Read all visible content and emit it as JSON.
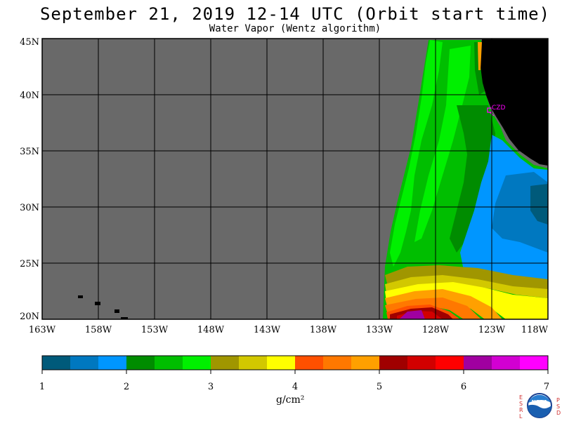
{
  "header": {
    "title": "September 21, 2019  12-14 UTC  (Orbit start time)",
    "subtitle": "Water Vapor (Wentz algorithm)"
  },
  "map": {
    "lat_labels": [
      "45N",
      "40N",
      "35N",
      "30N",
      "25N",
      "20N"
    ],
    "lon_labels": [
      "163W",
      "158W",
      "153W",
      "148W",
      "143W",
      "138W",
      "133W",
      "128W",
      "123W",
      "118W"
    ],
    "station_label": "CZD",
    "lat_range": [
      20,
      45
    ],
    "lon_range": [
      -163,
      -118
    ],
    "colors": {
      "no_data": "#696969",
      "land": "#000000",
      "station": "#ff00ff"
    }
  },
  "colorbar": {
    "tick_labels": [
      "1",
      "2",
      "3",
      "4",
      "5",
      "6",
      "7"
    ],
    "units": "g/cm²",
    "colors": [
      "#005a7a",
      "#0078c0",
      "#0096ff",
      "#008c00",
      "#00be00",
      "#00f000",
      "#a09600",
      "#d2c800",
      "#ffff00",
      "#ff5000",
      "#ff7800",
      "#ffa000",
      "#a00000",
      "#d20000",
      "#ff0000",
      "#a000a0",
      "#d200d2",
      "#ff00ff"
    ]
  },
  "logo": {
    "left_letters": "ESRL",
    "right_letters": "PSD",
    "name": "NOAA"
  }
}
